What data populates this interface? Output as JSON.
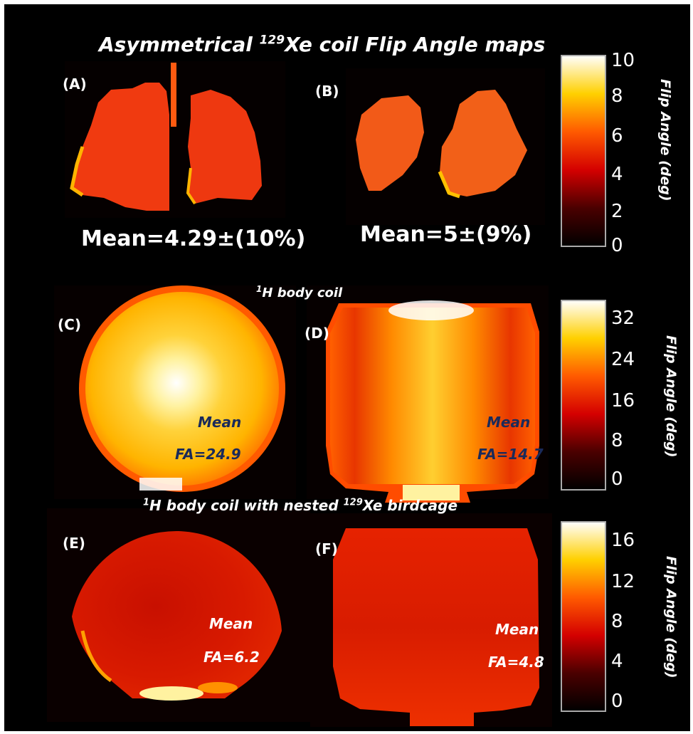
{
  "figure": {
    "title_main": "Asymmetrical ",
    "title_sup": "129",
    "title_rest": "Xe coil Flip Angle maps",
    "row2_title_sup": "1",
    "row2_title_rest": "H body coil",
    "row3_title_sup1": "1",
    "row3_title_mid": "H body coil with  nested ",
    "row3_title_sup2": "129",
    "row3_title_rest": "Xe birdcage"
  },
  "panels": {
    "A": {
      "label": "(A)",
      "mean": "Mean=4.29±(10%)"
    },
    "B": {
      "label": "(B)",
      "mean": "Mean=5±(9%)"
    },
    "C": {
      "label": "(C)",
      "mean_line1": "Mean",
      "mean_line2": "FA=24.9"
    },
    "D": {
      "label": "(D)",
      "mean_line1": "Mean",
      "mean_line2": "FA=14.7"
    },
    "E": {
      "label": "(E)",
      "mean_line1": "Mean",
      "mean_line2": "FA=6.2"
    },
    "F": {
      "label": "(F)",
      "mean_line1": "Mean",
      "mean_line2": "FA=4.8"
    }
  },
  "colorbars": [
    {
      "label": "Flip Angle (deg)",
      "ticks": [
        "10",
        "8",
        "6",
        "4",
        "2",
        "0"
      ]
    },
    {
      "label": "Flip Angle (deg)",
      "ticks": [
        "32",
        "24",
        "16",
        "8",
        "0"
      ]
    },
    {
      "label": "Flip Angle (deg)",
      "ticks": [
        "16",
        "12",
        "8",
        "4",
        "0"
      ]
    }
  ],
  "colors": {
    "background": "#000000",
    "mean_label_dark": "#1a2a5a",
    "mean_label_light": "#ffffff"
  }
}
